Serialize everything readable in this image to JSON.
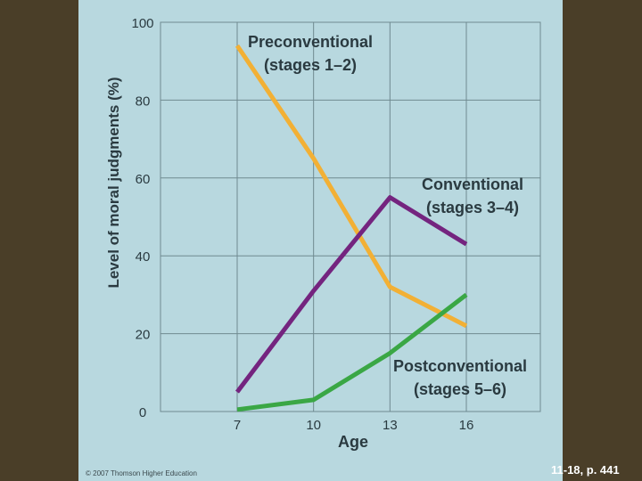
{
  "chart_data": {
    "type": "line",
    "title": "",
    "xlabel": "Age",
    "ylabel": "Level of moral judgments (%)",
    "categories": [
      "7",
      "10",
      "13",
      "16"
    ],
    "x": [
      7,
      10,
      13,
      16
    ],
    "xlim": [
      7,
      16
    ],
    "ylim": [
      0,
      100
    ],
    "yticks": [
      "0",
      "20",
      "40",
      "60",
      "80",
      "100"
    ],
    "grid": true,
    "series": [
      {
        "label_lines": [
          "Preconventional",
          "(stages 1–2)"
        ],
        "values": [
          94,
          65,
          32,
          22
        ],
        "color": "#f2b035"
      },
      {
        "label_lines": [
          "Conventional",
          "(stages 3–4)"
        ],
        "values": [
          5,
          31,
          55,
          43
        ],
        "color": "#74247f"
      },
      {
        "label_lines": [
          "Postconventional",
          "(stages 5–6)"
        ],
        "values": [
          0.5,
          3,
          15,
          30
        ],
        "color": "#3aa745"
      }
    ]
  },
  "caption": "© 2007 Thomson Higher Education",
  "figure_ref": "11-18, p. 441"
}
